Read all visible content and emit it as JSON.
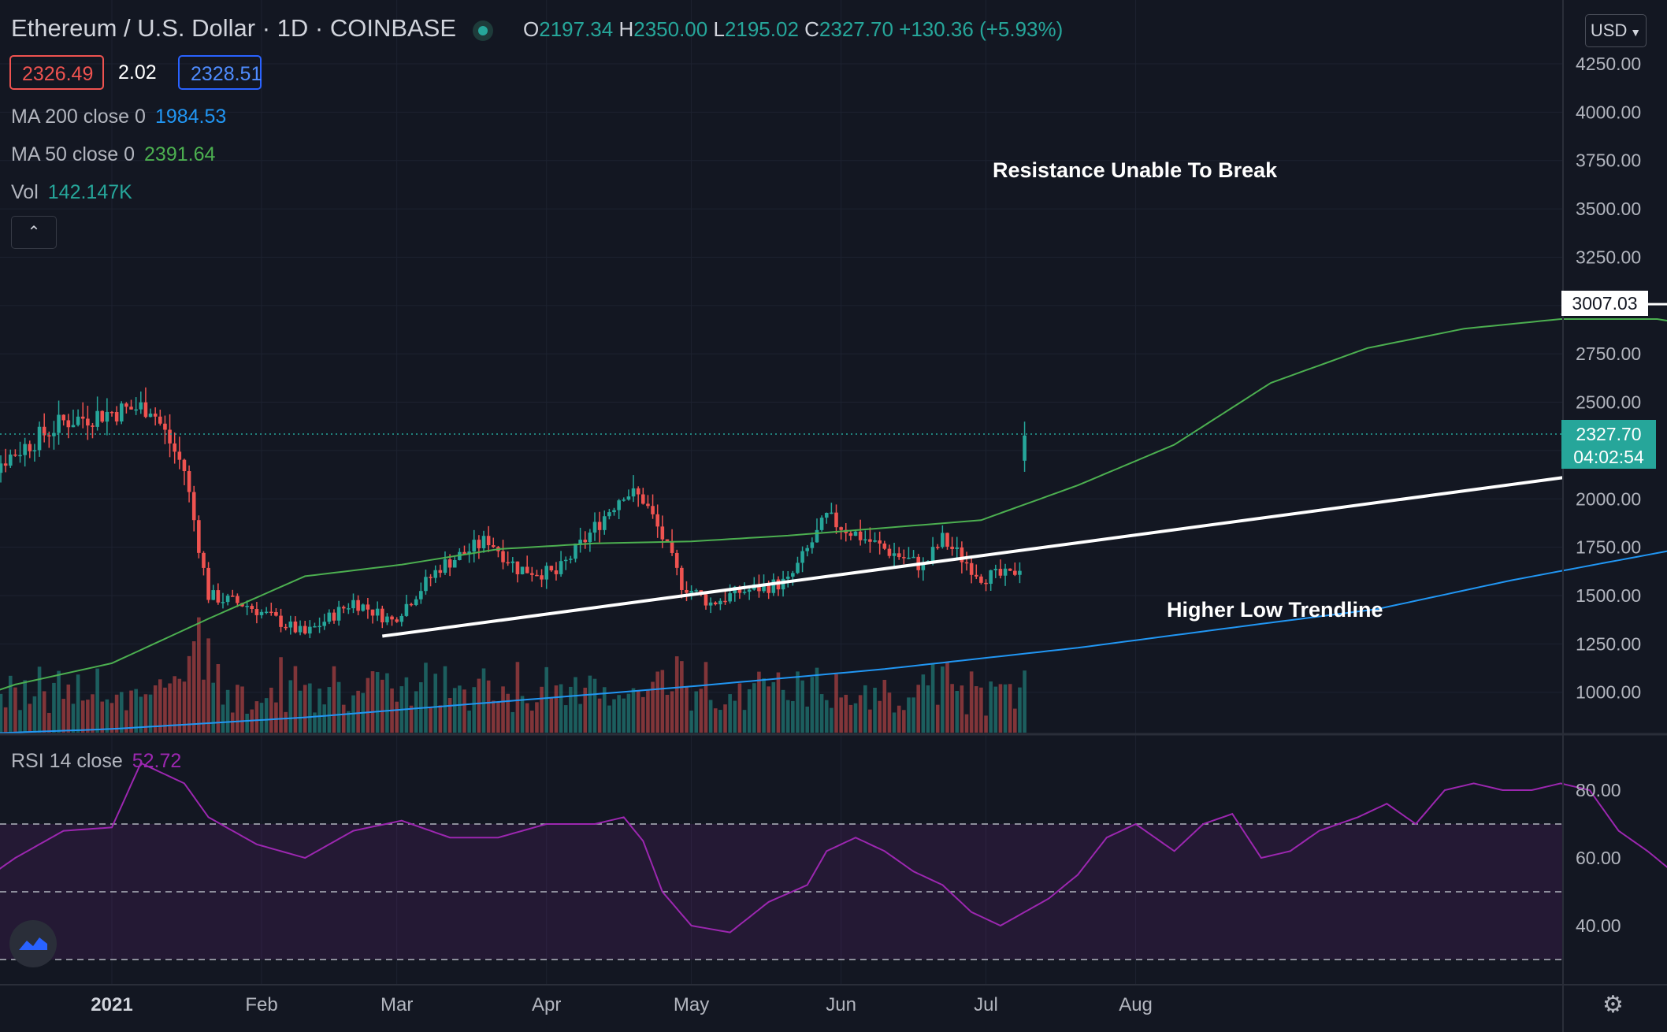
{
  "header": {
    "title": "Ethereum / U.S. Dollar · 1D · COINBASE",
    "ohlc": {
      "o_label": "O",
      "o": "2197.34",
      "h_label": "H",
      "h": "2350.00",
      "l_label": "L",
      "l": "2195.02",
      "c_label": "C",
      "c": "2327.70",
      "change": "+130.36 (+5.93%)"
    },
    "bid": "2326.49",
    "spread": "2.02",
    "ask": "2328.51"
  },
  "indicators": {
    "ma200": {
      "label": "MA 200 close 0",
      "value": "1984.53"
    },
    "ma50": {
      "label": "MA 50 close 0",
      "value": "2391.64"
    },
    "vol": {
      "label": "Vol",
      "value": "142.147K"
    },
    "rsi": {
      "label": "RSI 14 close",
      "value": "52.72"
    }
  },
  "controls": {
    "currency": "USD",
    "collapse_icon": "chevron-up-icon",
    "settings_icon": "gear-icon",
    "logo_icon": "tradingview-logo-icon"
  },
  "colors": {
    "up": "#26a69a",
    "down": "#ef5350",
    "ma50": "#4caf50",
    "ma200": "#2196f3",
    "rsi": "#9c27b0",
    "annotation": "#ffffff"
  },
  "chart_data": {
    "type": "candlestick",
    "price_axis": {
      "ticks": [
        "4250.00",
        "4000.00",
        "3750.00",
        "3500.00",
        "3250.00",
        "3000.00",
        "2750.00",
        "2500.00",
        "2250.00",
        "2000.00",
        "1750.00",
        "1500.00",
        "1250.00",
        "1000.00"
      ],
      "range": [
        750,
        4500
      ]
    },
    "rsi_axis": {
      "ticks": [
        "80.00",
        "60.00",
        "40.00"
      ],
      "bands": [
        30,
        50,
        70
      ]
    },
    "time_axis": {
      "ticks": [
        "2021",
        "Feb",
        "Mar",
        "Apr",
        "May",
        "Jun",
        "Jul",
        "Aug"
      ]
    },
    "last_price": {
      "value": "2327.70",
      "countdown": "04:02:54"
    },
    "resistance": {
      "value": "3007.03",
      "label": "Resistance Unable To Break"
    },
    "trendline": {
      "label": "Higher Low Trendline",
      "start": [
        "Feb 26",
        1290
      ],
      "end": [
        "Jul 15",
        2110
      ]
    },
    "price_anchors": [
      [
        -30,
        2080
      ],
      [
        -10,
        2400
      ],
      [
        0,
        2450
      ],
      [
        8,
        2480
      ],
      [
        15,
        2150
      ],
      [
        20,
        1500
      ],
      [
        28,
        1450
      ],
      [
        40,
        1300
      ],
      [
        50,
        1470
      ],
      [
        58,
        1370
      ],
      [
        68,
        1650
      ],
      [
        78,
        1790
      ],
      [
        84,
        1640
      ],
      [
        92,
        1610
      ],
      [
        100,
        1850
      ],
      [
        106,
        2040
      ],
      [
        110,
        2000
      ],
      [
        114,
        1800
      ],
      [
        118,
        1560
      ],
      [
        124,
        1460
      ],
      [
        130,
        1520
      ],
      [
        140,
        1570
      ],
      [
        148,
        1900
      ],
      [
        160,
        1740
      ],
      [
        168,
        1650
      ],
      [
        172,
        1790
      ],
      [
        180,
        1600
      ],
      [
        186,
        1600
      ],
      [
        194,
        1820
      ],
      [
        202,
        2080
      ],
      [
        212,
        2100
      ],
      [
        222,
        2020
      ],
      [
        232,
        2330
      ],
      [
        238,
        2450
      ],
      [
        244,
        2250
      ],
      [
        252,
        2150
      ],
      [
        258,
        2330
      ],
      [
        262,
        2600
      ],
      [
        268,
        2650
      ],
      [
        272,
        2870
      ],
      [
        280,
        2950
      ],
      [
        286,
        3480
      ],
      [
        292,
        3550
      ],
      [
        296,
        3420
      ],
      [
        302,
        3920
      ],
      [
        308,
        4170
      ],
      [
        312,
        3950
      ],
      [
        316,
        3750
      ],
      [
        320,
        3620
      ],
      [
        324,
        3400
      ],
      [
        328,
        3000
      ],
      [
        332,
        2440
      ],
      [
        338,
        2700
      ],
      [
        344,
        2100
      ],
      [
        350,
        2760
      ],
      [
        356,
        2600
      ],
      [
        362,
        2260
      ],
      [
        368,
        2700
      ],
      [
        374,
        2470
      ],
      [
        380,
        2630
      ],
      [
        386,
        2860
      ],
      [
        392,
        2720
      ],
      [
        398,
        2520
      ],
      [
        404,
        2340
      ],
      [
        410,
        2450
      ],
      [
        416,
        2550
      ],
      [
        422,
        2350
      ],
      [
        428,
        2100
      ],
      [
        432,
        1870
      ],
      [
        436,
        1850
      ],
      [
        440,
        1910
      ],
      [
        446,
        1810
      ],
      [
        450,
        1950
      ],
      [
        456,
        2100
      ],
      [
        462,
        2200
      ],
      [
        466,
        2100
      ],
      [
        470,
        2300
      ],
      [
        474,
        2280
      ],
      [
        478,
        2327
      ]
    ],
    "ma50_anchors": [
      [
        -56,
        800
      ],
      [
        -40,
        870
      ],
      [
        -20,
        1040
      ],
      [
        0,
        1150
      ],
      [
        20,
        1380
      ],
      [
        40,
        1600
      ],
      [
        60,
        1660
      ],
      [
        80,
        1740
      ],
      [
        100,
        1770
      ],
      [
        120,
        1780
      ],
      [
        140,
        1810
      ],
      [
        160,
        1850
      ],
      [
        180,
        1890
      ],
      [
        200,
        2070
      ],
      [
        220,
        2280
      ],
      [
        240,
        2600
      ],
      [
        260,
        2780
      ],
      [
        280,
        2880
      ],
      [
        300,
        2930
      ],
      [
        320,
        2930
      ],
      [
        340,
        2850
      ],
      [
        358,
        2720
      ],
      [
        376,
        2560
      ],
      [
        392,
        2440
      ],
      [
        408,
        2391.64
      ]
    ],
    "ma200_anchors": [
      [
        -56,
        760
      ],
      [
        0,
        810
      ],
      [
        40,
        870
      ],
      [
        80,
        950
      ],
      [
        120,
        1030
      ],
      [
        160,
        1120
      ],
      [
        200,
        1230
      ],
      [
        240,
        1360
      ],
      [
        262,
        1430
      ],
      [
        290,
        1580
      ],
      [
        320,
        1720
      ],
      [
        350,
        1860
      ],
      [
        380,
        1930
      ],
      [
        410,
        1984.53
      ]
    ],
    "rsi_anchors": [
      [
        -30,
        50
      ],
      [
        -20,
        60
      ],
      [
        -10,
        68
      ],
      [
        0,
        69
      ],
      [
        6,
        88
      ],
      [
        15,
        82
      ],
      [
        20,
        72
      ],
      [
        30,
        64
      ],
      [
        40,
        60
      ],
      [
        50,
        68
      ],
      [
        60,
        71
      ],
      [
        70,
        66
      ],
      [
        80,
        66
      ],
      [
        90,
        70
      ],
      [
        100,
        70
      ],
      [
        106,
        72
      ],
      [
        110,
        65
      ],
      [
        114,
        50
      ],
      [
        120,
        40
      ],
      [
        128,
        38
      ],
      [
        136,
        47
      ],
      [
        144,
        52
      ],
      [
        148,
        62
      ],
      [
        154,
        66
      ],
      [
        160,
        62
      ],
      [
        166,
        56
      ],
      [
        172,
        52
      ],
      [
        178,
        44
      ],
      [
        184,
        40
      ],
      [
        194,
        48
      ],
      [
        200,
        55
      ],
      [
        206,
        66
      ],
      [
        212,
        70
      ],
      [
        220,
        62
      ],
      [
        226,
        70
      ],
      [
        232,
        73
      ],
      [
        238,
        60
      ],
      [
        244,
        62
      ],
      [
        250,
        68
      ],
      [
        258,
        72
      ],
      [
        264,
        76
      ],
      [
        270,
        70
      ],
      [
        276,
        80
      ],
      [
        282,
        82
      ],
      [
        288,
        80
      ],
      [
        294,
        80
      ],
      [
        300,
        82
      ],
      [
        306,
        80
      ],
      [
        312,
        68
      ],
      [
        318,
        62
      ],
      [
        324,
        55
      ],
      [
        330,
        46
      ],
      [
        336,
        40
      ],
      [
        342,
        44
      ],
      [
        348,
        40
      ],
      [
        354,
        48
      ],
      [
        360,
        52
      ],
      [
        366,
        44
      ],
      [
        372,
        50
      ],
      [
        378,
        48
      ],
      [
        384,
        52
      ],
      [
        390,
        46
      ],
      [
        396,
        44
      ],
      [
        402,
        46
      ],
      [
        408,
        48
      ],
      [
        414,
        44
      ],
      [
        420,
        44
      ],
      [
        426,
        42
      ],
      [
        432,
        38
      ],
      [
        438,
        34
      ],
      [
        444,
        38
      ],
      [
        450,
        36
      ],
      [
        456,
        44
      ],
      [
        462,
        48
      ],
      [
        468,
        46
      ],
      [
        474,
        50
      ],
      [
        478,
        52.72
      ]
    ]
  }
}
